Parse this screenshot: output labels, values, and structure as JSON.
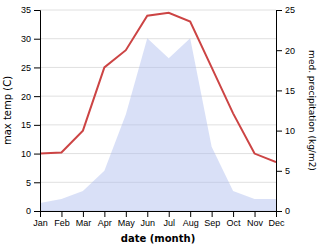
{
  "chart_data": {
    "type": "line",
    "xlabel": "date (month)",
    "ylabel": "max temp (C)",
    "y2label": "med. precipitation (kg/m2)",
    "categories": [
      "Jan",
      "Feb",
      "Mar",
      "Apr",
      "May",
      "Jun",
      "Jul",
      "Aug",
      "Sep",
      "Oct",
      "Nov",
      "Dec"
    ],
    "series": [
      {
        "type": "area",
        "axis": "y2",
        "color": "#aabbee",
        "values": [
          1.0,
          1.5,
          2.5,
          5.0,
          12.0,
          21.5,
          19.0,
          21.5,
          8.0,
          2.5,
          1.5,
          1.5
        ]
      },
      {
        "type": "line",
        "color": "#cc4444",
        "values": [
          10,
          10.2,
          14,
          25,
          28,
          34,
          34.5,
          33,
          25,
          17,
          10,
          8.5
        ]
      }
    ],
    "ylim": [
      0,
      35
    ],
    "yticks": [
      0,
      5,
      10,
      15,
      20,
      25,
      30,
      35
    ],
    "y2lim": [
      0,
      25
    ],
    "y2ticks": [
      0,
      5,
      10,
      15,
      20,
      25
    ],
    "grid": true
  }
}
